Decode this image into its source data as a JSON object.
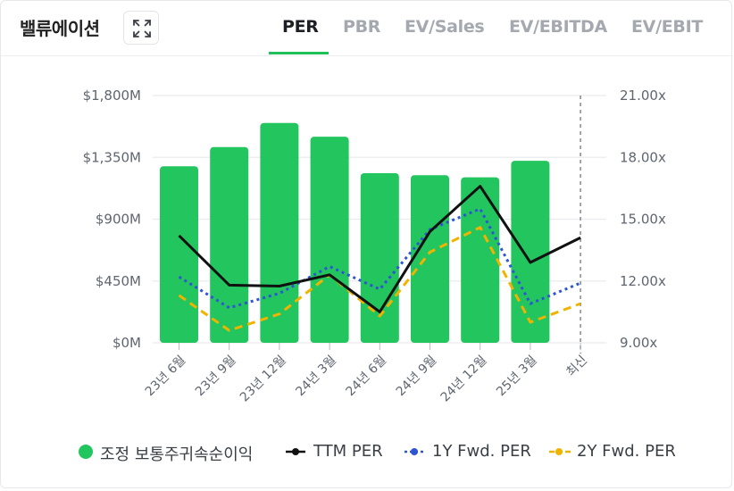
{
  "header": {
    "title": "밸류에이션",
    "expand_icon": "expand-icon",
    "tabs": [
      {
        "label": "PER",
        "active": true
      },
      {
        "label": "PBR",
        "active": false
      },
      {
        "label": "EV/Sales",
        "active": false
      },
      {
        "label": "EV/EBITDA",
        "active": false
      },
      {
        "label": "EV/EBIT",
        "active": false
      }
    ]
  },
  "colors": {
    "bar": "#22c55e",
    "ttm": "#111111",
    "fwd1": "#2f55d4",
    "fwd2": "#f0b400",
    "accent": "#1fbf5a"
  },
  "chart_data": {
    "type": "bar",
    "categories": [
      "23년 6월",
      "23년 9월",
      "23년 12월",
      "24년 3월",
      "24년 6월",
      "24년 9월",
      "24년 12월",
      "25년 3월",
      "최신"
    ],
    "left_axis": {
      "ticks": [
        "$0M",
        "$450M",
        "$900M",
        "$1,350M",
        "$1,800M"
      ],
      "ylim": [
        0,
        1800
      ]
    },
    "right_axis": {
      "ticks": [
        "9.00x",
        "12.00x",
        "15.00x",
        "18.00x",
        "21.00x"
      ],
      "ylim": [
        9,
        21
      ]
    },
    "series": [
      {
        "name": "조정 보통주귀속순이익",
        "type": "bar",
        "axis": "left",
        "values": [
          1285,
          1425,
          1600,
          1500,
          1235,
          1220,
          1205,
          1325,
          null
        ]
      },
      {
        "name": "TTM PER",
        "type": "line",
        "axis": "right",
        "style": "solid",
        "values": [
          14.2,
          11.8,
          11.75,
          12.3,
          10.5,
          14.4,
          16.6,
          12.9,
          14.1
        ]
      },
      {
        "name": "1Y Fwd. PER",
        "type": "line",
        "axis": "right",
        "style": "dotted",
        "values": [
          12.2,
          10.7,
          11.4,
          12.7,
          11.6,
          14.5,
          15.5,
          10.9,
          11.9
        ]
      },
      {
        "name": "2Y Fwd. PER",
        "type": "line",
        "axis": "right",
        "style": "dashed",
        "values": [
          11.3,
          9.6,
          10.4,
          12.3,
          10.3,
          13.4,
          14.6,
          10.0,
          10.9
        ]
      }
    ],
    "legend_position": "bottom",
    "grid": true,
    "latest_marker": "dashed vertical line at 최신"
  }
}
